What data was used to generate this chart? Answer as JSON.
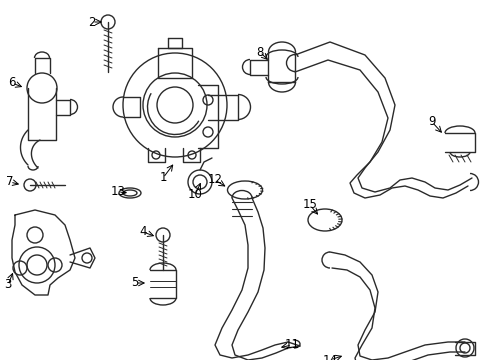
{
  "background_color": "#ffffff",
  "line_color": "#2a2a2a",
  "figsize": [
    4.89,
    3.6
  ],
  "dpi": 100,
  "xlim": [
    0,
    489
  ],
  "ylim": [
    0,
    360
  ]
}
